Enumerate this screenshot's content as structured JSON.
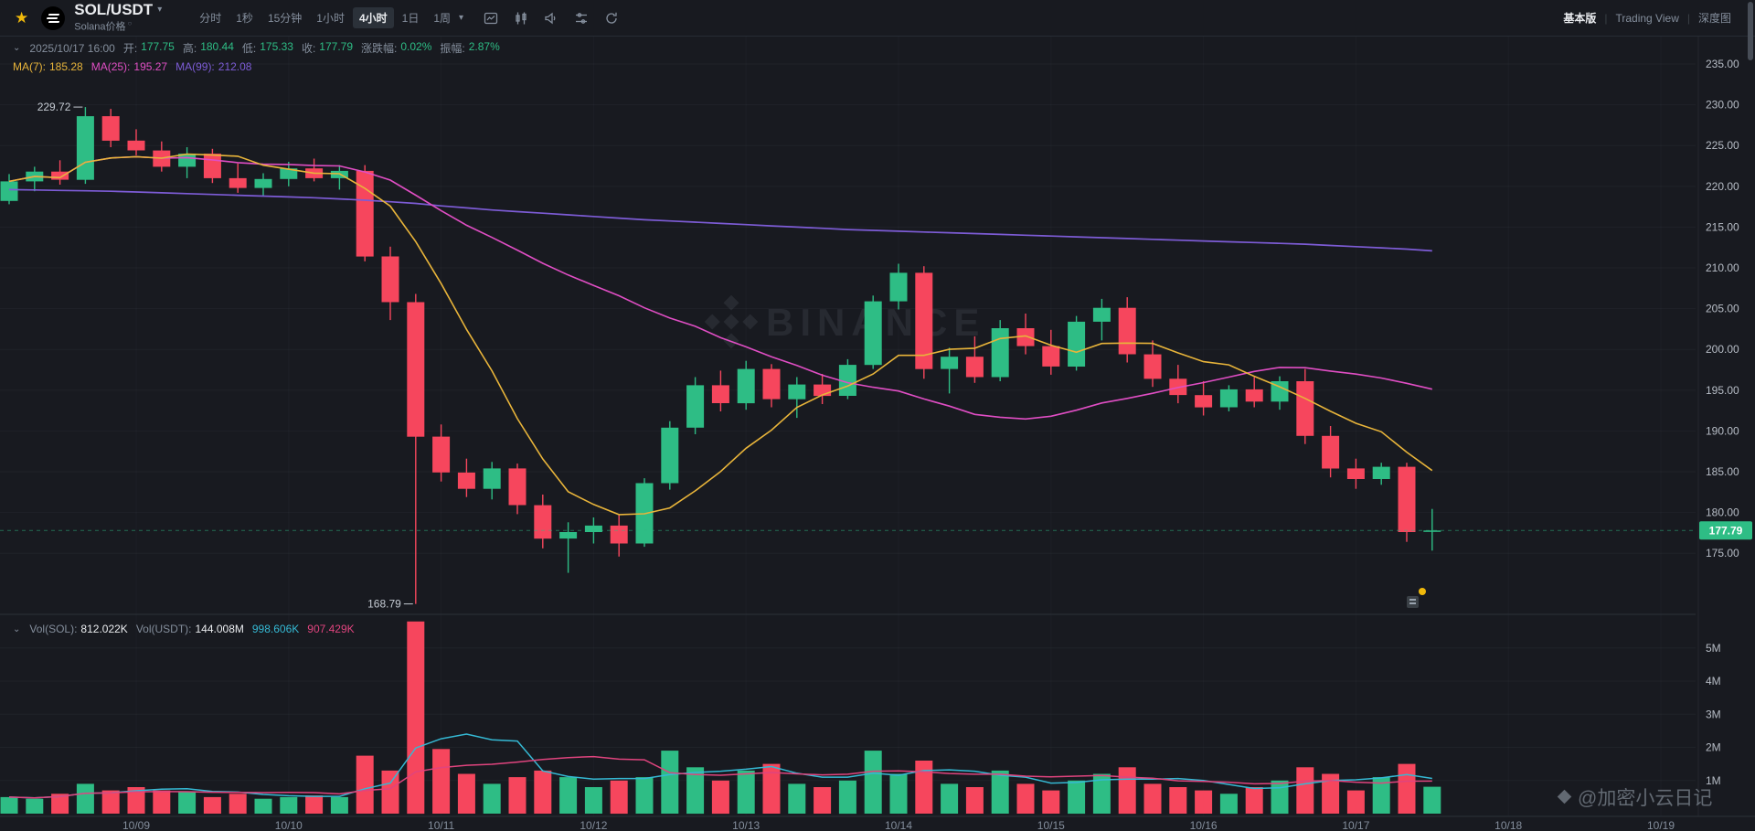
{
  "header": {
    "symbol": "SOL/USDT",
    "subtitle": "Solana价格",
    "timeframes": [
      "分时",
      "1秒",
      "15分钟",
      "1小时",
      "4小时",
      "1日",
      "1周"
    ],
    "active_timeframe": "4小时",
    "view_tabs": [
      "基本版",
      "Trading View",
      "深度图"
    ],
    "active_view_tab": "基本版"
  },
  "ohlc_bar": {
    "datetime": "2025/10/17 16:00",
    "open_label": "开:",
    "open": "177.75",
    "high_label": "高:",
    "high": "180.44",
    "low_label": "低:",
    "low": "175.33",
    "close_label": "收:",
    "close": "177.79",
    "change_label": "涨跌幅:",
    "change": "0.02%",
    "amplitude_label": "振幅:",
    "amplitude": "2.87%"
  },
  "ma_bar": {
    "ma7_label": "MA(7):",
    "ma7": "185.28",
    "ma25_label": "MA(25):",
    "ma25": "195.27",
    "ma99_label": "MA(99):",
    "ma99": "212.08"
  },
  "volume_bar": {
    "vol_sol_label": "Vol(SOL):",
    "vol_sol": "812.022K",
    "vol_usdt_label": "Vol(USDT):",
    "vol_usdt": "144.008M",
    "vol_ma_fast": "998.606K",
    "vol_ma_slow": "907.429K"
  },
  "watermark": {
    "brand": "BINANCE",
    "credit": "@加密小云日记"
  },
  "chart_data": {
    "type": "candlestick",
    "symbol": "SOL/USDT",
    "interval": "4小时",
    "title": "SOL/USDT 4h candlestick with MA(7), MA(25), MA(99) and volume",
    "x_labels": [
      "10/09",
      "10/10",
      "10/11",
      "10/12",
      "10/13",
      "10/14",
      "10/15",
      "10/16",
      "10/17",
      "10/18",
      "10/19"
    ],
    "y_ticks": [
      235,
      230,
      225,
      220,
      215,
      210,
      205,
      200,
      195,
      190,
      185,
      180,
      175
    ],
    "price_ylim": [
      168,
      236
    ],
    "vol_ticks": [
      5,
      4,
      3,
      2,
      1
    ],
    "vol_ylim": [
      0,
      6
    ],
    "last_price": 177.79,
    "annotations": {
      "high": {
        "label": "229.72",
        "price": 229.72,
        "index": 3
      },
      "low": {
        "label": "168.79",
        "price": 168.79,
        "index": 16
      }
    },
    "ma_periods": {
      "ma7": 7,
      "ma25": 25,
      "vol_fast": 5,
      "vol_slow": 10
    },
    "candles": [
      [
        218.2,
        221.5,
        217.8,
        220.6
      ],
      [
        220.6,
        222.4,
        219.4,
        221.8
      ],
      [
        221.8,
        223.2,
        220.2,
        220.8
      ],
      [
        220.8,
        229.72,
        220.3,
        228.6
      ],
      [
        228.6,
        229.5,
        224.8,
        225.6
      ],
      [
        225.6,
        227.0,
        223.8,
        224.4
      ],
      [
        224.4,
        225.5,
        221.8,
        222.4
      ],
      [
        222.4,
        224.8,
        221.0,
        224.0
      ],
      [
        224.0,
        224.6,
        220.4,
        221.0
      ],
      [
        221.0,
        222.8,
        219.2,
        219.8
      ],
      [
        219.8,
        221.6,
        218.8,
        220.9
      ],
      [
        220.9,
        223.0,
        220.0,
        222.2
      ],
      [
        222.2,
        223.4,
        220.6,
        221.0
      ],
      [
        221.0,
        222.6,
        219.6,
        221.9
      ],
      [
        221.9,
        222.6,
        210.8,
        211.4
      ],
      [
        211.4,
        212.6,
        203.6,
        205.8
      ],
      [
        205.8,
        206.8,
        168.79,
        189.3
      ],
      [
        189.3,
        190.8,
        183.8,
        184.9
      ],
      [
        184.9,
        186.6,
        181.9,
        182.9
      ],
      [
        182.9,
        186.2,
        181.6,
        185.4
      ],
      [
        185.4,
        186.0,
        179.8,
        180.9
      ],
      [
        180.9,
        182.2,
        175.6,
        176.8
      ],
      [
        176.8,
        178.8,
        172.6,
        177.6
      ],
      [
        177.6,
        179.4,
        176.2,
        178.4
      ],
      [
        178.4,
        179.8,
        174.6,
        176.2
      ],
      [
        176.2,
        184.2,
        175.8,
        183.6
      ],
      [
        183.6,
        191.2,
        182.8,
        190.4
      ],
      [
        190.4,
        196.6,
        189.6,
        195.6
      ],
      [
        195.6,
        197.4,
        192.4,
        193.4
      ],
      [
        193.4,
        198.6,
        192.6,
        197.6
      ],
      [
        197.6,
        198.2,
        192.9,
        193.9
      ],
      [
        193.9,
        196.6,
        191.6,
        195.7
      ],
      [
        195.7,
        197.0,
        193.3,
        194.3
      ],
      [
        194.3,
        198.8,
        193.9,
        198.1
      ],
      [
        198.1,
        206.6,
        197.6,
        205.9
      ],
      [
        205.9,
        210.5,
        204.9,
        209.4
      ],
      [
        209.4,
        210.2,
        196.4,
        197.6
      ],
      [
        197.6,
        200.2,
        194.6,
        199.1
      ],
      [
        199.1,
        201.6,
        195.9,
        196.6
      ],
      [
        196.6,
        203.6,
        196.1,
        202.6
      ],
      [
        202.6,
        204.4,
        199.4,
        200.4
      ],
      [
        200.4,
        202.4,
        196.9,
        197.9
      ],
      [
        197.9,
        204.1,
        197.4,
        203.4
      ],
      [
        203.4,
        206.2,
        201.1,
        205.1
      ],
      [
        205.1,
        206.4,
        198.4,
        199.4
      ],
      [
        199.4,
        201.1,
        195.4,
        196.4
      ],
      [
        196.4,
        198.1,
        193.4,
        194.4
      ],
      [
        194.4,
        196.1,
        191.9,
        192.9
      ],
      [
        192.9,
        195.6,
        192.4,
        195.1
      ],
      [
        195.1,
        196.6,
        192.9,
        193.6
      ],
      [
        193.6,
        196.7,
        192.6,
        196.1
      ],
      [
        196.1,
        197.6,
        188.4,
        189.4
      ],
      [
        189.4,
        190.6,
        184.3,
        185.4
      ],
      [
        185.4,
        186.6,
        182.9,
        184.1
      ],
      [
        184.1,
        186.1,
        183.4,
        185.6
      ],
      [
        185.6,
        186.1,
        176.4,
        177.6
      ],
      [
        177.75,
        180.44,
        175.33,
        177.79
      ]
    ],
    "volumes": [
      0.5,
      0.45,
      0.6,
      0.9,
      0.7,
      0.8,
      0.7,
      0.65,
      0.5,
      0.6,
      0.45,
      0.5,
      0.55,
      0.5,
      1.75,
      1.3,
      5.8,
      1.95,
      1.2,
      0.9,
      1.1,
      1.3,
      1.1,
      0.8,
      1.0,
      1.1,
      1.9,
      1.4,
      1.0,
      1.3,
      1.5,
      0.9,
      0.8,
      1.0,
      1.9,
      1.2,
      1.6,
      0.9,
      0.8,
      1.3,
      0.9,
      0.7,
      1.0,
      1.2,
      1.4,
      0.9,
      0.8,
      0.7,
      0.6,
      0.8,
      1.0,
      1.4,
      1.2,
      0.7,
      1.1,
      1.5,
      0.812
    ],
    "ma99": [
      219.6,
      219.55,
      219.5,
      219.45,
      219.4,
      219.3,
      219.2,
      219.1,
      219.0,
      218.9,
      218.8,
      218.7,
      218.6,
      218.45,
      218.3,
      218.1,
      217.9,
      217.6,
      217.35,
      217.1,
      216.9,
      216.7,
      216.5,
      216.3,
      216.1,
      215.9,
      215.75,
      215.6,
      215.45,
      215.3,
      215.15,
      215.0,
      214.85,
      214.7,
      214.6,
      214.5,
      214.4,
      214.3,
      214.2,
      214.1,
      214.0,
      213.9,
      213.8,
      213.7,
      213.6,
      213.5,
      213.4,
      213.3,
      213.2,
      213.1,
      213.0,
      212.9,
      212.75,
      212.6,
      212.45,
      212.3,
      212.08
    ],
    "colors": {
      "up": "#2ebd85",
      "down": "#f6465d",
      "ma7": "#e8b43a",
      "ma25": "#e04ec4",
      "ma99": "#7d5cd6",
      "vol_ma_fast": "#35b9d4",
      "vol_ma_slow": "#e0447e",
      "last_price_badge": "#2ebd85",
      "grid": "rgba(132,142,156,0.07)",
      "accent": "#f0b90b"
    }
  }
}
